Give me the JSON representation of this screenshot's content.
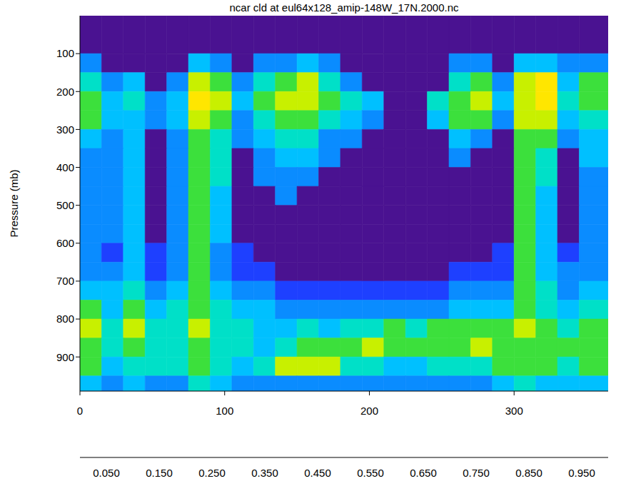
{
  "chart_data": {
    "type": "heatmap",
    "title": "ncar cld at eul64x128_amip-148W_17N.2000.nc",
    "y_label": "Pressure (mb)",
    "xlim": [
      0,
      365
    ],
    "xticks": [
      0,
      100,
      200,
      300
    ],
    "ylim": [
      0,
      990
    ],
    "yticks": [
      100,
      200,
      300,
      400,
      500,
      600,
      700,
      800,
      900
    ],
    "y_reversed": true,
    "x": [
      0,
      15,
      30,
      45,
      60,
      75,
      90,
      105,
      120,
      135,
      150,
      165,
      180,
      195,
      210,
      225,
      240,
      255,
      270,
      285,
      300,
      315,
      330,
      345,
      365
    ],
    "y": [
      0,
      100,
      150,
      200,
      250,
      300,
      350,
      400,
      450,
      500,
      550,
      600,
      650,
      700,
      750,
      800,
      850,
      900,
      950,
      990
    ],
    "values": [
      [
        0,
        0,
        0,
        0,
        0,
        0,
        0,
        0,
        0,
        0,
        0,
        0,
        0,
        0,
        0,
        0,
        0,
        0,
        0,
        0,
        0,
        0,
        0,
        0
      ],
      [
        0.05,
        0,
        0,
        0,
        0,
        0.15,
        0.1,
        0,
        0.05,
        0.1,
        0.15,
        0.05,
        0,
        0,
        0,
        0,
        0,
        0.05,
        0.05,
        0,
        0.15,
        0.2,
        0.05,
        0.1
      ],
      [
        0.3,
        0.1,
        0.15,
        0,
        0.1,
        0.5,
        0.4,
        0.1,
        0.3,
        0.4,
        0.5,
        0.3,
        0.1,
        0,
        0,
        0,
        0,
        0.3,
        0.4,
        0.1,
        0.5,
        0.55,
        0.2,
        0.35
      ],
      [
        0.4,
        0.2,
        0.25,
        0.05,
        0.15,
        0.55,
        0.45,
        0.15,
        0.4,
        0.45,
        0.5,
        0.35,
        0.25,
        0.2,
        0,
        0,
        0.3,
        0.4,
        0.45,
        0.2,
        0.5,
        0.6,
        0.25,
        0.4
      ],
      [
        0.35,
        0.15,
        0.2,
        0.05,
        0.15,
        0.45,
        0.4,
        0.1,
        0.3,
        0.35,
        0.4,
        0.25,
        0.15,
        0.05,
        0,
        0,
        0.15,
        0.35,
        0.35,
        0.1,
        0.45,
        0.5,
        0.15,
        0.3
      ],
      [
        0.2,
        0.1,
        0.2,
        0,
        0.1,
        0.4,
        0.3,
        0.05,
        0.2,
        0.25,
        0.3,
        0.1,
        0.05,
        0,
        0,
        0,
        0,
        0.15,
        0.1,
        0,
        0.4,
        0.4,
        0.05,
        0.2
      ],
      [
        0.1,
        0.05,
        0.2,
        0,
        0.1,
        0.35,
        0.25,
        0,
        0.1,
        0.2,
        0.15,
        0.05,
        0,
        0,
        0,
        0,
        0,
        0.05,
        0,
        0,
        0.4,
        0.3,
        0,
        0.15
      ],
      [
        0.1,
        0.05,
        0.2,
        0,
        0.05,
        0.35,
        0.25,
        0,
        0.05,
        0.1,
        0.05,
        0,
        0,
        0,
        0,
        0,
        0,
        0,
        0,
        0,
        0.35,
        0.25,
        0,
        0.1
      ],
      [
        0.1,
        0.05,
        0.2,
        0,
        0.05,
        0.35,
        0.2,
        0,
        0,
        0.05,
        0,
        0,
        0,
        0,
        0,
        0,
        0,
        0,
        0,
        0,
        0.35,
        0.2,
        0,
        0.1
      ],
      [
        0.1,
        0.05,
        0.2,
        0,
        0.05,
        0.35,
        0.2,
        0,
        0,
        0,
        0,
        0,
        0,
        0,
        0,
        0,
        0,
        0,
        0,
        0,
        0.35,
        0.2,
        0,
        0.1
      ],
      [
        0.1,
        0.05,
        0.2,
        0,
        0.05,
        0.35,
        0.2,
        0,
        0,
        0,
        0,
        0,
        0,
        0,
        0,
        0,
        0,
        0,
        0,
        0,
        0.35,
        0.2,
        0,
        0.1
      ],
      [
        0.08,
        0.03,
        0.2,
        0.02,
        0.05,
        0.35,
        0.1,
        0.02,
        0,
        0,
        0,
        0,
        0,
        0,
        0,
        0,
        0,
        0,
        0,
        0.02,
        0.35,
        0.2,
        0.03,
        0.1
      ],
      [
        0.1,
        0.05,
        0.2,
        0.03,
        0.05,
        0.35,
        0.1,
        0.03,
        0.03,
        0,
        0,
        0,
        0,
        0,
        0,
        0,
        0,
        0.02,
        0.02,
        0.03,
        0.35,
        0.2,
        0.05,
        0.1
      ],
      [
        0.2,
        0.15,
        0.25,
        0.1,
        0.15,
        0.4,
        0.15,
        0.1,
        0.1,
        0.03,
        0.03,
        0.03,
        0.03,
        0.03,
        0.03,
        0.03,
        0.03,
        0.05,
        0.1,
        0.1,
        0.4,
        0.25,
        0.1,
        0.2
      ],
      [
        0.35,
        0.2,
        0.35,
        0.2,
        0.25,
        0.4,
        0.25,
        0.2,
        0.15,
        0.05,
        0.05,
        0.05,
        0.05,
        0.05,
        0.05,
        0.1,
        0.1,
        0.2,
        0.2,
        0.2,
        0.4,
        0.3,
        0.2,
        0.3
      ],
      [
        0.45,
        0.25,
        0.5,
        0.3,
        0.3,
        0.45,
        0.3,
        0.25,
        0.2,
        0.15,
        0.25,
        0.2,
        0.3,
        0.3,
        0.35,
        0.3,
        0.35,
        0.35,
        0.4,
        0.35,
        0.45,
        0.4,
        0.3,
        0.4
      ],
      [
        0.4,
        0.25,
        0.4,
        0.3,
        0.3,
        0.4,
        0.3,
        0.25,
        0.2,
        0.3,
        0.4,
        0.35,
        0.4,
        0.45,
        0.4,
        0.35,
        0.35,
        0.4,
        0.45,
        0.4,
        0.4,
        0.4,
        0.35,
        0.35
      ],
      [
        0.35,
        0.2,
        0.3,
        0.25,
        0.25,
        0.4,
        0.3,
        0.2,
        0.25,
        0.5,
        0.45,
        0.5,
        0.3,
        0.25,
        0.2,
        0.2,
        0.25,
        0.3,
        0.3,
        0.35,
        0.4,
        0.35,
        0.3,
        0.4
      ],
      [
        0.2,
        0.1,
        0.2,
        0.1,
        0.1,
        0.3,
        0.15,
        0.1,
        0.1,
        0.05,
        0.05,
        0.05,
        0.05,
        0.05,
        0.05,
        0.05,
        0.05,
        0.1,
        0.1,
        0.15,
        0.3,
        0.2,
        0.15,
        0.2
      ]
    ],
    "colorbar": {
      "range": [
        0,
        1
      ],
      "ticks": [
        {
          "value": 0.05,
          "label": "0.050"
        },
        {
          "value": 0.15,
          "label": "0.150"
        },
        {
          "value": 0.25,
          "label": "0.250"
        },
        {
          "value": 0.35,
          "label": "0.350"
        },
        {
          "value": 0.45,
          "label": "0.450"
        },
        {
          "value": 0.55,
          "label": "0.550"
        },
        {
          "value": 0.65,
          "label": "0.650"
        },
        {
          "value": 0.75,
          "label": "0.750"
        },
        {
          "value": 0.85,
          "label": "0.850"
        },
        {
          "value": 0.95,
          "label": "0.950"
        }
      ],
      "levels": [
        0,
        0.01,
        0.05,
        0.15,
        0.25,
        0.35,
        0.45,
        0.55,
        0.65,
        0.75,
        0.85,
        0.95,
        1
      ],
      "colors": [
        "#4a1291",
        "#1e40ff",
        "#0a8cff",
        "#00c0ff",
        "#00e0c8",
        "#3ce03c",
        "#c8f000",
        "#ffe600",
        "#ffb400",
        "#ff7800",
        "#ff1e1e",
        "#000000"
      ]
    }
  }
}
